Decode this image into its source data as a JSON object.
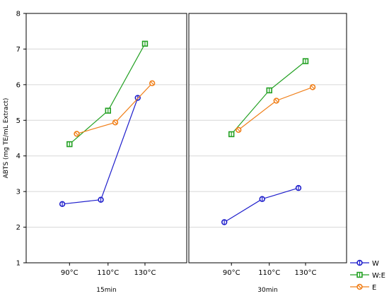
{
  "chart_data": {
    "type": "line",
    "ylabel": "ABTS (mg TE/mL Extract)",
    "ylim": [
      1,
      8
    ],
    "yticks": [
      1,
      2,
      3,
      4,
      5,
      6,
      7,
      8
    ],
    "categories": [
      "90°C",
      "110°C",
      "130°C"
    ],
    "grid": true,
    "legend_position": "bottom-right",
    "panels": [
      {
        "label": "15min",
        "series": [
          {
            "name": "W",
            "values": [
              2.65,
              2.77,
              5.63
            ]
          },
          {
            "name": "W:E",
            "values": [
              4.33,
              5.27,
              7.15
            ]
          },
          {
            "name": "E",
            "values": [
              4.62,
              4.94,
              6.04
            ]
          }
        ]
      },
      {
        "label": "30min",
        "series": [
          {
            "name": "W",
            "values": [
              2.14,
              2.79,
              3.1
            ]
          },
          {
            "name": "W:E",
            "values": [
              4.61,
              5.84,
              6.66
            ]
          },
          {
            "name": "E",
            "values": [
              4.73,
              5.55,
              5.93
            ]
          }
        ]
      }
    ],
    "series_styles": [
      {
        "name": "W",
        "color": "#1f1fcc",
        "marker": "circle"
      },
      {
        "name": "W:E",
        "color": "#22a022",
        "marker": "square"
      },
      {
        "name": "E",
        "color": "#f07f19",
        "marker": "diamond"
      }
    ]
  }
}
